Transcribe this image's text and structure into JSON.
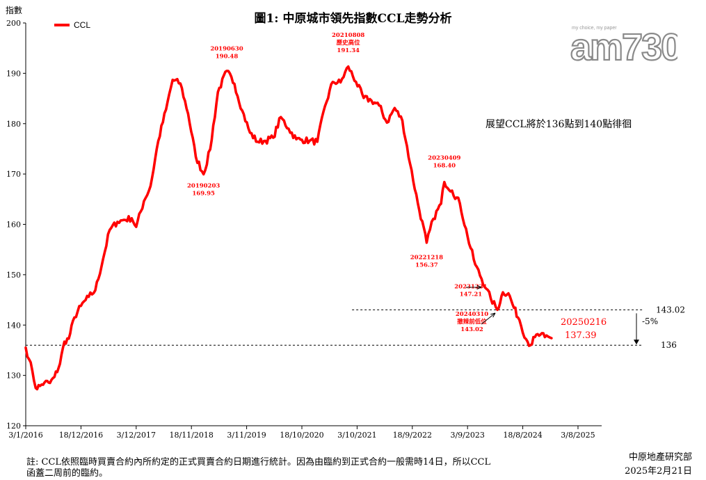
{
  "chart_data": {
    "type": "line",
    "title": "圖1: 中原城市領先指數CCL走勢分析",
    "ylabel": "指數",
    "xlabel": "",
    "ylim": [
      120,
      200
    ],
    "yticks": [
      120,
      130,
      140,
      150,
      160,
      170,
      180,
      190,
      200
    ],
    "xticks": [
      "3/1/2016",
      "18/12/2016",
      "3/12/2017",
      "18/11/2018",
      "3/11/2019",
      "18/10/2020",
      "3/10/2021",
      "18/9/2022",
      "3/9/2023",
      "18/8/2024",
      "3/8/2025"
    ],
    "legend": {
      "position": "top-left",
      "entries": [
        "CCL"
      ]
    },
    "grid": false,
    "series": [
      {
        "name": "CCL",
        "color": "#ff0000",
        "points": [
          [
            "2016-01-03",
            135.5
          ],
          [
            "2016-01-24",
            133.2
          ],
          [
            "2016-02-14",
            130.9
          ],
          [
            "2016-03-06",
            127.5
          ],
          [
            "2016-04-03",
            127.9
          ],
          [
            "2016-05-01",
            128.6
          ],
          [
            "2016-06-05",
            128.5
          ],
          [
            "2016-07-03",
            129.7
          ],
          [
            "2016-08-07",
            132.3
          ],
          [
            "2016-09-04",
            136.7
          ],
          [
            "2016-10-02",
            137.3
          ],
          [
            "2016-11-06",
            141.5
          ],
          [
            "2016-12-18",
            143.8
          ],
          [
            "2017-02-05",
            145.6
          ],
          [
            "2017-03-19",
            146.9
          ],
          [
            "2017-05-07",
            153.1
          ],
          [
            "2017-06-18",
            158.9
          ],
          [
            "2017-08-06",
            160.5
          ],
          [
            "2017-09-17",
            160.9
          ],
          [
            "2017-11-05",
            161.2
          ],
          [
            "2017-12-03",
            159.5
          ],
          [
            "2018-01-21",
            164.6
          ],
          [
            "2018-03-04",
            167.6
          ],
          [
            "2018-04-22",
            176.6
          ],
          [
            "2018-06-10",
            182.8
          ],
          [
            "2018-07-22",
            188.7
          ],
          [
            "2018-09-09",
            188.0
          ],
          [
            "2018-10-28",
            182.0
          ],
          [
            "2018-12-16",
            173.4
          ],
          [
            "2019-02-03",
            169.95
          ],
          [
            "2019-03-17",
            174.9
          ],
          [
            "2019-05-05",
            186.3
          ],
          [
            "2019-06-30",
            190.48
          ],
          [
            "2019-08-18",
            187.9
          ],
          [
            "2019-10-06",
            182.6
          ],
          [
            "2019-11-24",
            178.2
          ],
          [
            "2020-01-12",
            176.4
          ],
          [
            "2020-03-01",
            176.6
          ],
          [
            "2020-04-19",
            177.2
          ],
          [
            "2020-06-07",
            181.3
          ],
          [
            "2020-07-26",
            179.0
          ],
          [
            "2020-09-13",
            176.9
          ],
          [
            "2020-10-18",
            176.8
          ],
          [
            "2020-12-06",
            176.6
          ],
          [
            "2021-01-24",
            176.4
          ],
          [
            "2021-03-14",
            183.5
          ],
          [
            "2021-05-02",
            188.3
          ],
          [
            "2021-06-20",
            188.2
          ],
          [
            "2021-08-08",
            191.34
          ],
          [
            "2021-09-26",
            188.3
          ],
          [
            "2021-11-14",
            185.1
          ],
          [
            "2022-01-02",
            184.6
          ],
          [
            "2022-02-20",
            183.6
          ],
          [
            "2022-04-10",
            180.2
          ],
          [
            "2022-05-29",
            183.1
          ],
          [
            "2022-07-17",
            180.6
          ],
          [
            "2022-09-04",
            172.0
          ],
          [
            "2022-10-23",
            164.2
          ],
          [
            "2022-12-18",
            156.37
          ],
          [
            "2023-01-29",
            161.1
          ],
          [
            "2023-03-19",
            164.1
          ],
          [
            "2023-04-09",
            168.4
          ],
          [
            "2023-05-28",
            166.7
          ],
          [
            "2023-07-16",
            164.2
          ],
          [
            "2023-09-03",
            157.6
          ],
          [
            "2023-10-22",
            152.0
          ],
          [
            "2023-12-31",
            147.21
          ],
          [
            "2024-01-28",
            145.3
          ],
          [
            "2024-03-10",
            143.02
          ],
          [
            "2024-04-14",
            146.5
          ],
          [
            "2024-05-19",
            146.3
          ],
          [
            "2024-06-23",
            143.4
          ],
          [
            "2024-07-28",
            141.0
          ],
          [
            "2024-09-08",
            137.2
          ],
          [
            "2024-10-06",
            136.0
          ],
          [
            "2024-11-03",
            137.6
          ],
          [
            "2024-12-08",
            138.1
          ],
          [
            "2025-01-05",
            137.6
          ],
          [
            "2025-02-16",
            137.39
          ]
        ]
      }
    ],
    "reference_lines": [
      {
        "value": 143.02,
        "label": "143.02",
        "style": "dashed",
        "from": "2021-09-01"
      },
      {
        "value": 136,
        "label": "136",
        "style": "dashed",
        "from": "2016-01-03"
      }
    ],
    "change_label": "-5%",
    "annotations": [
      {
        "lines": [
          "20190630",
          "190.48"
        ],
        "x": "2019-06-30",
        "anchor_y": 193.0
      },
      {
        "lines": [
          "20210808",
          "歷史高位",
          "191.34"
        ],
        "x": "2021-08-08",
        "anchor_y": 194.2
      },
      {
        "lines": [
          "20190203",
          "169.95"
        ],
        "x": "2019-02-03",
        "anchor_y": 165.8
      },
      {
        "lines": [
          "20230409",
          "168.40"
        ],
        "x": "2023-04-09",
        "anchor_y": 171.3
      },
      {
        "lines": [
          "20221218",
          "156.37"
        ],
        "x": "2022-12-18",
        "anchor_y": 151.6
      },
      {
        "lines": [
          "20231231",
          "147.21"
        ],
        "x": "2023-09-24",
        "anchor_y": 145.8
      },
      {
        "lines": [
          "20240310",
          "撤辣前低位",
          "143.02"
        ],
        "x": "2023-10-01",
        "anchor_y": 138.8
      }
    ],
    "latest": {
      "date_label": "20250216",
      "value_label": "137.39"
    },
    "outlook": "展望CCL將於136點到140點徘徊"
  },
  "note": "註: CCL依照臨時買賣合約內所約定的正式買賣合約日期進行統計。因為由臨約到正式合約一般需時14日，所以CCL函蓋二周前的臨約。",
  "source": {
    "dept": "中原地產研究部",
    "date": "2025年2月21日"
  },
  "logo": {
    "text": "am730",
    "tagline": "my choice, my paper"
  }
}
